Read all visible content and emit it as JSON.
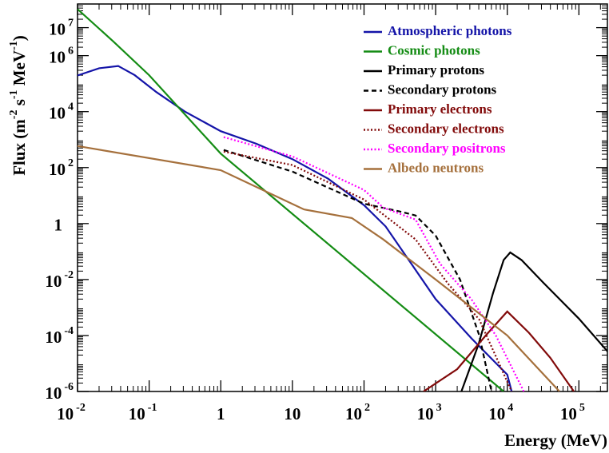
{
  "chart_data": {
    "type": "line",
    "x_label": "Energy (MeV)",
    "y_label": {
      "parts": [
        "Flux (m",
        "-2",
        " s",
        "-1",
        " MeV",
        "-1",
        ")"
      ],
      "sup": [
        false,
        true,
        false,
        true,
        false,
        true,
        false
      ]
    },
    "log_x": true,
    "log_y": true,
    "xlim": [
      0.01,
      250000
    ],
    "ylim": [
      1e-06,
      70000000
    ],
    "xticks": [
      {
        "value": 0.01,
        "label": "10",
        "sup": "-2"
      },
      {
        "value": 0.1,
        "label": "10",
        "sup": "-1"
      },
      1,
      10,
      {
        "value": 100,
        "label": "10",
        "sup": "2"
      },
      {
        "value": 1000,
        "label": "10",
        "sup": "3"
      },
      {
        "value": 10000,
        "label": "10",
        "sup": "4"
      },
      {
        "value": 100000,
        "label": "10",
        "sup": "5"
      }
    ],
    "yticks": [
      {
        "value": 1e-06,
        "label": "10",
        "sup": "-6"
      },
      {
        "value": 0.0001,
        "label": "10",
        "sup": "-4"
      },
      {
        "value": 0.01,
        "label": "10",
        "sup": "-2"
      },
      1,
      {
        "value": 100,
        "label": "10",
        "sup": "2"
      },
      {
        "value": 10000,
        "label": "10",
        "sup": "4"
      },
      {
        "value": 1000000,
        "label": "10",
        "sup": "6"
      },
      {
        "value": 10000000,
        "label": "10",
        "sup": "7"
      }
    ],
    "legend": "top-right",
    "series": [
      {
        "name": "Atmospheric photons",
        "color": "#1414a8",
        "dash": "solid",
        "x": [
          0.01,
          0.02,
          0.037,
          0.063,
          0.126,
          0.316,
          1,
          3.16,
          10,
          31.6,
          100,
          200,
          1000,
          3160,
          10000,
          11500
        ],
        "values": [
          195000,
          355000,
          427000,
          200000,
          50000,
          10000,
          2000,
          708,
          200,
          40,
          4.5,
          0.79,
          0.002,
          7.9e-05,
          4e-06,
          1e-06
        ]
      },
      {
        "name": "Cosmic photons",
        "color": "#148c14",
        "dash": "solid",
        "x": [
          0.01,
          0.0316,
          0.1,
          0.316,
          1,
          8900
        ],
        "values": [
          46000000,
          3200000,
          200000,
          7900,
          316,
          1e-06
        ]
      },
      {
        "name": "Primary protons",
        "color": "#000000",
        "dash": "solid",
        "x": [
          2290,
          3980,
          6310,
          8910,
          11000,
          15800,
          31600,
          100000,
          251000
        ],
        "values": [
          1e-06,
          5e-05,
          0.0032,
          0.05,
          0.093,
          0.05,
          0.0079,
          0.0004,
          2.7e-05
        ]
      },
      {
        "name": "Secondary protons",
        "color": "#000000",
        "dash": "dashed",
        "x": [
          1.1,
          10,
          100,
          316,
          525,
          1000,
          2190,
          4070,
          6030
        ],
        "values": [
          427,
          72,
          5.1,
          2.7,
          1.95,
          0.37,
          0.01,
          0.0001,
          1e-06
        ]
      },
      {
        "name": "Primary electrons",
        "color": "#820a0a",
        "dash": "solid",
        "x": [
          676,
          2000,
          5010,
          10000,
          20000,
          39800,
          85100
        ],
        "values": [
          1e-06,
          6.3e-06,
          0.0001,
          0.00072,
          0.000126,
          1.6e-05,
          1e-06
        ]
      },
      {
        "name": "Secondary electrons",
        "color": "#820a0a",
        "dash": "dotted",
        "x": [
          1.1,
          10,
          100,
          525,
          1480,
          4070,
          11500
        ],
        "values": [
          372,
          123,
          7.2,
          0.27,
          0.0072,
          0.00037,
          1e-06
        ]
      },
      {
        "name": "Secondary positrons",
        "color": "#ff00ff",
        "dash": "dotted",
        "x": [
          1.1,
          10,
          100,
          186,
          525,
          1150,
          3160,
          6920,
          17000
        ],
        "values": [
          1230,
          251,
          15.8,
          3.7,
          1.38,
          0.037,
          0.00195,
          0.0001,
          1e-06
        ]
      },
      {
        "name": "Albedo neutrons",
        "color": "#a5703c",
        "dash": "solid",
        "x": [
          0.01,
          1,
          14.5,
          67.6,
          186,
          1000,
          10000,
          53700
        ],
        "values": [
          589,
          81,
          3.2,
          1.58,
          0.27,
          0.01,
          0.0001,
          1e-06
        ]
      }
    ]
  }
}
